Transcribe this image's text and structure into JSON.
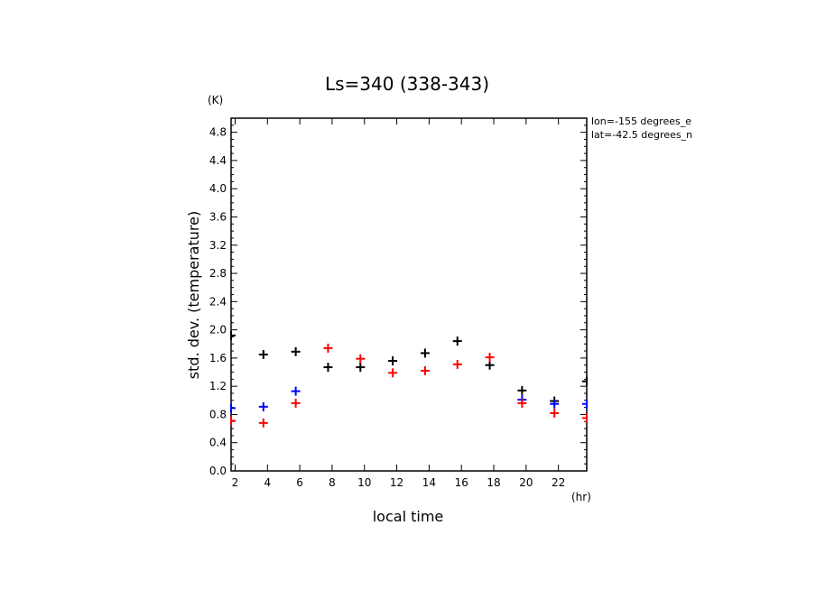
{
  "chart_data": {
    "type": "scatter",
    "title": "Ls=340 (338-343)",
    "xlabel": "local time",
    "ylabel": "std. dev. (temperature)",
    "x_unit": "(hr)",
    "y_unit": "(K)",
    "annotations": [
      "lon=-155 degrees_e",
      "lat=-42.5 degrees_n"
    ],
    "xlim": [
      1.75,
      23.75
    ],
    "ylim": [
      0.0,
      5.0
    ],
    "xticks": [
      2,
      4,
      6,
      8,
      10,
      12,
      14,
      16,
      18,
      20,
      22
    ],
    "yticks": [
      0.0,
      0.4,
      0.8,
      1.2,
      1.6,
      2.0,
      2.4,
      2.8,
      3.2,
      3.6,
      4.0,
      4.4,
      4.8
    ],
    "grid": false,
    "legend": "none",
    "series": [
      {
        "color": "#000000",
        "x": [
          1.75,
          3.75,
          5.75,
          7.75,
          9.75,
          11.75,
          13.75,
          15.75,
          17.75,
          19.75,
          21.75,
          23.75
        ],
        "y": [
          1.92,
          1.65,
          1.69,
          1.47,
          1.47,
          1.56,
          1.67,
          1.84,
          1.5,
          1.14,
          0.99,
          1.27
        ]
      },
      {
        "color": "#0000ff",
        "x": [
          1.75,
          3.75,
          5.75,
          19.75,
          21.75,
          23.75
        ],
        "y": [
          0.89,
          0.91,
          1.13,
          1.01,
          0.95,
          0.95
        ]
      },
      {
        "color": "#ff0000",
        "x": [
          1.75,
          3.75,
          5.75,
          7.75,
          9.75,
          11.75,
          13.75,
          15.75,
          17.75,
          19.75,
          21.75,
          23.75
        ],
        "y": [
          0.71,
          0.68,
          0.96,
          1.74,
          1.59,
          1.39,
          1.42,
          1.51,
          1.61,
          0.96,
          0.82,
          0.75
        ]
      }
    ]
  }
}
